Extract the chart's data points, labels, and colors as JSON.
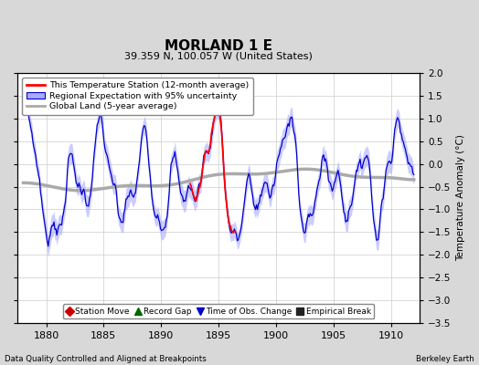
{
  "title": "MORLAND 1 E",
  "subtitle": "39.359 N, 100.057 W (United States)",
  "xlabel_bottom": "Data Quality Controlled and Aligned at Breakpoints",
  "xlabel_right": "Berkeley Earth",
  "ylabel": "Temperature Anomaly (°C)",
  "xlim": [
    1877.5,
    1912.5
  ],
  "ylim": [
    -3.5,
    2.0
  ],
  "yticks": [
    -3.5,
    -3.0,
    -2.5,
    -2.0,
    -1.5,
    -1.0,
    -0.5,
    0.0,
    0.5,
    1.0,
    1.5,
    2.0
  ],
  "xticks": [
    1880,
    1885,
    1890,
    1895,
    1900,
    1905,
    1910
  ],
  "background_color": "#d8d8d8",
  "plot_bg_color": "#ffffff",
  "grid_color": "#cccccc",
  "legend_labels": [
    "This Temperature Station (12-month average)",
    "Regional Expectation with 95% uncertainty",
    "Global Land (5-year average)"
  ],
  "legend_line_color": "#ff0000",
  "legend_band_color": "#aaaaff",
  "legend_band_edge": "#0000cc",
  "legend_gray_color": "#aaaaaa",
  "regional_color": "#0000cc",
  "station_color": "#ff0000",
  "global_color": "#aaaaaa",
  "uncertainty_color": "#aaaaff",
  "uncertainty_alpha": 0.6,
  "marker_labels": [
    "Station Move",
    "Record Gap",
    "Time of Obs. Change",
    "Empirical Break"
  ],
  "marker_colors": [
    "#cc0000",
    "#006600",
    "#0000cc",
    "#222222"
  ],
  "marker_shapes": [
    "D",
    "^",
    "v",
    "s"
  ]
}
